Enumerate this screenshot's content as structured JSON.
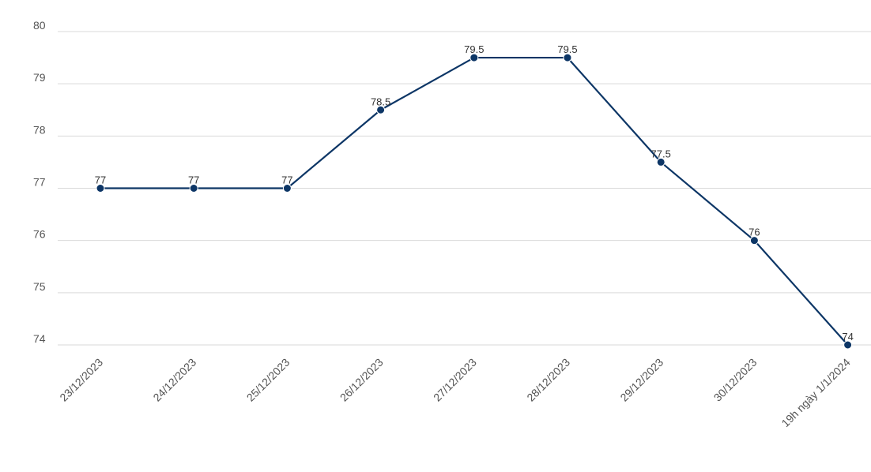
{
  "chart_data": {
    "type": "line",
    "title": "",
    "xlabel": "",
    "ylabel": "",
    "ylim": [
      74,
      80
    ],
    "yticks": [
      74,
      75,
      76,
      77,
      78,
      79,
      80
    ],
    "grid": true,
    "categories": [
      "23/12/2023",
      "24/12/2023",
      "25/12/2023",
      "26/12/2023",
      "27/12/2023",
      "28/12/2023",
      "29/12/2023",
      "30/12/2023",
      "19h ngày 1/1/2024"
    ],
    "series": [
      {
        "values": [
          77,
          77,
          77,
          78.5,
          79.5,
          79.5,
          77.5,
          76,
          74
        ],
        "labels": [
          "77",
          "77",
          "77",
          "78.5",
          "79.5",
          "79.5",
          "77.5",
          "76",
          "74"
        ],
        "color": "#0d3666"
      }
    ],
    "grid_color": "#d9d9d9"
  }
}
